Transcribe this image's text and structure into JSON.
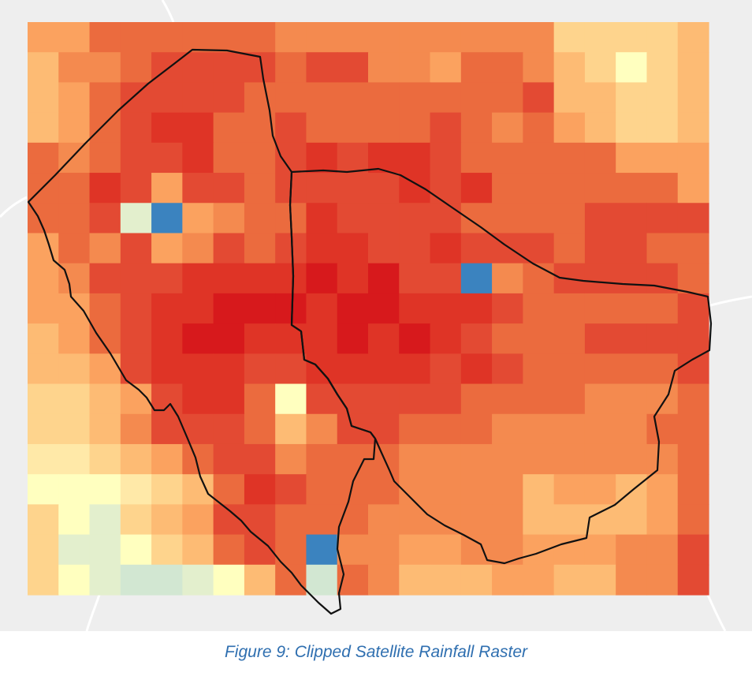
{
  "caption": "Figure 9: Clipped Satellite Rainfall Raster",
  "raster": {
    "rows": 19,
    "cols": 22,
    "palette": {
      "a": "#d7191c",
      "b": "#df3426",
      "c": "#e34a33",
      "d": "#eb6b3e",
      "e": "#f48a4f",
      "f": "#fba25f",
      "g": "#fdbb74",
      "h": "#fed48d",
      "i": "#ffe9a8",
      "j": "#ffffbf",
      "k": "#e3efcd",
      "l": "#d2e7d2",
      "m": "#3b83bf"
    },
    "grid": [
      "ffddddddeeeeeeeeehhhhg",
      "geedccccdcceefddeghjhg",
      "gfdccccdddddddddcgghhg",
      "gfdcbbddcddddcdedfghhg",
      "dedccbddcbcbbcdddddfff",
      "ddbcfccdccccbcbddddddf",
      "ddckmfeddbccccddddcccc",
      "fdecfecdcbbccbcccdccdd",
      "fecccbbbbabaccmedccccd",
      "ffdcbbaaabaabbbcdddddc",
      "gfdcbaabbbababcdddcccc",
      "ggfcbbbccbbbbcbcdddddc",
      "hhgfcbbdjcccccddddeeed",
      "hhgecccdgeccdddeeeeedd",
      "iihgfdccedddeeeeeeeeed",
      "jjjihgdbcdddeeeegffgfd",
      "hjkhgfccdddeeeeeggggfd",
      "hkkjhgdcdmeeffeefffeec",
      "hjkllkjgdldegggffggeec"
    ]
  }
}
